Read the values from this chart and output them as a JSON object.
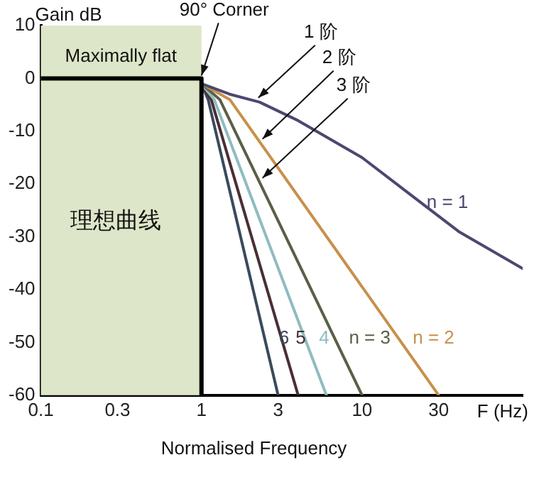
{
  "chart_data": {
    "type": "line",
    "ylabel": "Gain dB",
    "xlabel": "Normalised Frequency",
    "log": "x",
    "xlim": [
      0.1,
      100
    ],
    "xticks": [
      0.1,
      0.3,
      1,
      3,
      10,
      30
    ],
    "ylim": [
      -60,
      10
    ],
    "yticks": [
      10,
      0,
      -10,
      -20,
      -30,
      -40,
      -50,
      -60
    ],
    "grid": false,
    "legend": false,
    "marker": "none",
    "line_style": "solid",
    "bands": [
      {
        "axis": "x",
        "from": 0.1,
        "to": 1,
        "label": "理想曲线",
        "color": "#dde6c8"
      }
    ],
    "annotations": [
      "Maximally flat",
      "F (Hz)",
      {
        "text": "90° Corner",
        "x": 1,
        "y": 0
      },
      {
        "text": "1 阶",
        "x": 2.26,
        "y": -4.2
      },
      {
        "text": "2 阶",
        "x": 2.4,
        "y": -12
      },
      {
        "text": "3 阶",
        "x": 2.4,
        "y": -19.4
      }
    ],
    "series": [
      {
        "color": "#000000",
        "x": [
          0.1,
          1,
          1
        ],
        "values": [
          0,
          0,
          -60
        ]
      },
      {
        "name": "n = 1",
        "color": "#4b4870",
        "x": [
          1,
          1.5,
          2.3,
          4,
          10,
          20,
          40,
          100
        ],
        "values": [
          -1,
          -3,
          -4.5,
          -8,
          -15,
          -22,
          -29,
          -36
        ]
      },
      {
        "name": "n = 2",
        "color": "#c8904a",
        "x": [
          1,
          1.5,
          30
        ],
        "values": [
          -1,
          -4,
          -60
        ]
      },
      {
        "name": "n = 3",
        "color": "#5a6048",
        "x": [
          1,
          1.3,
          10
        ],
        "values": [
          -1,
          -4,
          -60
        ]
      },
      {
        "name": "4",
        "color": "#8fbcc0",
        "x": [
          1,
          1.2,
          6
        ],
        "values": [
          -1,
          -4,
          -60
        ]
      },
      {
        "name": "5",
        "color": "#4a2f35",
        "x": [
          1,
          1.15,
          4
        ],
        "values": [
          -1,
          -4,
          -60
        ]
      },
      {
        "name": "6",
        "color": "#3a4a5e",
        "x": [
          1,
          1.1,
          3
        ],
        "values": [
          -1,
          -4,
          -60
        ]
      }
    ]
  }
}
